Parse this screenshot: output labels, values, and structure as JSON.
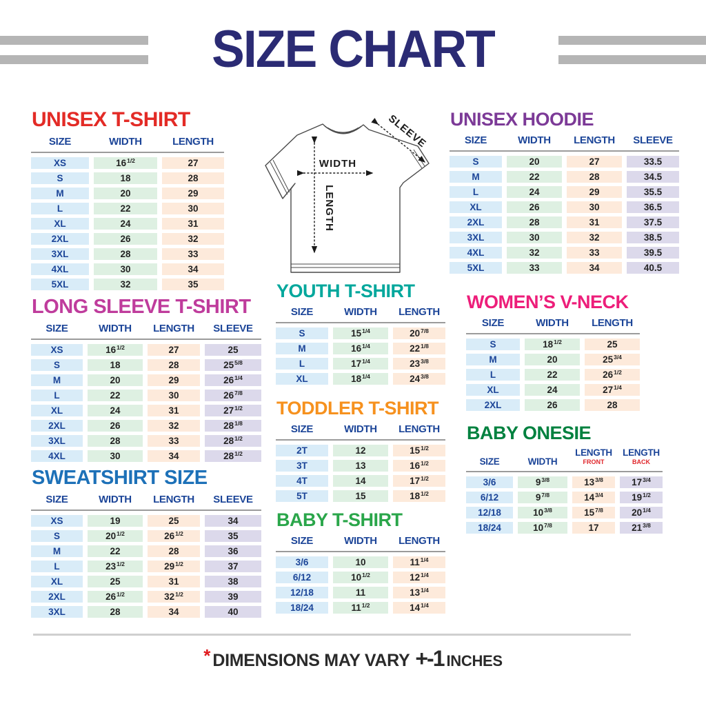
{
  "title": "SIZE CHART",
  "colors": {
    "main_title": "#2b2b74",
    "decorative_bar": "#b5b5b5",
    "header_navy": "#1c4598",
    "cell_blue": "#d9ecf8",
    "cell_green": "#def0e2",
    "cell_peach": "#fdeadb",
    "cell_lavender": "#dcd9eb",
    "footnote_red": "#e0191d"
  },
  "diagram": {
    "width_label": "WIDTH",
    "length_label": "LENGTH",
    "sleeve_label": "SLEEVE"
  },
  "footer": {
    "asterisk": "*",
    "text": "DIMENSIONS MAY VARY",
    "tolerance": "+-1",
    "unit": "INCHES"
  },
  "sections": [
    {
      "id": "unisex-tshirt",
      "title": "UNISEX T-SHIRT",
      "color": "#e32b26",
      "columns": [
        {
          "label": "SIZE"
        },
        {
          "label": "WIDTH"
        },
        {
          "label": "LENGTH"
        }
      ],
      "rows": [
        [
          "XS",
          "16^1/2",
          "27"
        ],
        [
          "S",
          "18",
          "28"
        ],
        [
          "M",
          "20",
          "29"
        ],
        [
          "L",
          "22",
          "30"
        ],
        [
          "XL",
          "24",
          "31"
        ],
        [
          "2XL",
          "26",
          "32"
        ],
        [
          "3XL",
          "28",
          "33"
        ],
        [
          "4XL",
          "30",
          "34"
        ],
        [
          "5XL",
          "32",
          "35"
        ]
      ]
    },
    {
      "id": "unisex-hoodie",
      "title": "UNISEX HOODIE",
      "color": "#7c3a97",
      "columns": [
        {
          "label": "SIZE"
        },
        {
          "label": "WIDTH"
        },
        {
          "label": "LENGTH"
        },
        {
          "label": "SLEEVE"
        }
      ],
      "rows": [
        [
          "S",
          "20",
          "27",
          "33.5"
        ],
        [
          "M",
          "22",
          "28",
          "34.5"
        ],
        [
          "L",
          "24",
          "29",
          "35.5"
        ],
        [
          "XL",
          "26",
          "30",
          "36.5"
        ],
        [
          "2XL",
          "28",
          "31",
          "37.5"
        ],
        [
          "3XL",
          "30",
          "32",
          "38.5"
        ],
        [
          "4XL",
          "32",
          "33",
          "39.5"
        ],
        [
          "5XL",
          "33",
          "34",
          "40.5"
        ]
      ]
    },
    {
      "id": "long-sleeve-tshirt",
      "title": "LONG SLEEVE T-SHIRT",
      "color": "#bf3c9c",
      "columns": [
        {
          "label": "SIZE"
        },
        {
          "label": "WIDTH"
        },
        {
          "label": "LENGTH"
        },
        {
          "label": "SLEEVE"
        }
      ],
      "rows": [
        [
          "XS",
          "16^1/2",
          "27",
          "25"
        ],
        [
          "S",
          "18",
          "28",
          "25^5/8"
        ],
        [
          "M",
          "20",
          "29",
          "26^1/4"
        ],
        [
          "L",
          "22",
          "30",
          "26^7/8"
        ],
        [
          "XL",
          "24",
          "31",
          "27^1/2"
        ],
        [
          "2XL",
          "26",
          "32",
          "28^1/8"
        ],
        [
          "3XL",
          "28",
          "33",
          "28^1/2"
        ],
        [
          "4XL",
          "30",
          "34",
          "28^1/2"
        ]
      ]
    },
    {
      "id": "youth-tshirt",
      "title": "YOUTH T-SHIRT",
      "color": "#00a79c",
      "columns": [
        {
          "label": "SIZE"
        },
        {
          "label": "WIDTH"
        },
        {
          "label": "LENGTH"
        }
      ],
      "rows": [
        [
          "S",
          "15^1/4",
          "20^7/8"
        ],
        [
          "M",
          "16^1/4",
          "22^1/8"
        ],
        [
          "L",
          "17^1/4",
          "23^3/8"
        ],
        [
          "XL",
          "18^1/4",
          "24^3/8"
        ]
      ]
    },
    {
      "id": "womens-vneck",
      "title": "WOMEN’S V-NECK",
      "color": "#ed1e7a",
      "columns": [
        {
          "label": "SIZE"
        },
        {
          "label": "WIDTH"
        },
        {
          "label": "LENGTH"
        }
      ],
      "rows": [
        [
          "S",
          "18^1/2",
          "25"
        ],
        [
          "M",
          "20",
          "25^3/4"
        ],
        [
          "L",
          "22",
          "26^1/2"
        ],
        [
          "XL",
          "24",
          "27^1/4"
        ],
        [
          "2XL",
          "26",
          "28"
        ]
      ]
    },
    {
      "id": "toddler-tshirt",
      "title": "TODDLER T-SHIRT",
      "color": "#f6911e",
      "columns": [
        {
          "label": "SIZE"
        },
        {
          "label": "WIDTH"
        },
        {
          "label": "LENGTH"
        }
      ],
      "rows": [
        [
          "2T",
          "12",
          "15^1/2"
        ],
        [
          "3T",
          "13",
          "16^1/2"
        ],
        [
          "4T",
          "14",
          "17^1/2"
        ],
        [
          "5T",
          "15",
          "18^1/2"
        ]
      ]
    },
    {
      "id": "sweatshirt-size",
      "title": "SWEATSHIRT SIZE",
      "color": "#1d71b8",
      "columns": [
        {
          "label": "SIZE"
        },
        {
          "label": "WIDTH"
        },
        {
          "label": "LENGTH"
        },
        {
          "label": "SLEEVE"
        }
      ],
      "rows": [
        [
          "XS",
          "19",
          "25",
          "34"
        ],
        [
          "S",
          "20^1/2",
          "26^1/2",
          "35"
        ],
        [
          "M",
          "22",
          "28",
          "36"
        ],
        [
          "L",
          "23^1/2",
          "29^1/2",
          "37"
        ],
        [
          "XL",
          "25",
          "31",
          "38"
        ],
        [
          "2XL",
          "26^1/2",
          "32^1/2",
          "39"
        ],
        [
          "3XL",
          "28",
          "34",
          "40"
        ]
      ]
    },
    {
      "id": "baby-tshirt",
      "title": "BABY T-SHIRT",
      "color": "#2aa64a",
      "columns": [
        {
          "label": "SIZE"
        },
        {
          "label": "WIDTH"
        },
        {
          "label": "LENGTH"
        }
      ],
      "rows": [
        [
          "3/6",
          "10",
          "11^1/4"
        ],
        [
          "6/12",
          "10^1/2",
          "12^1/4"
        ],
        [
          "12/18",
          "11",
          "13^1/4"
        ],
        [
          "18/24",
          "11^1/2",
          "14^1/4"
        ]
      ]
    },
    {
      "id": "baby-onesie",
      "title": "BABY ONESIE",
      "color": "#00813f",
      "columns": [
        {
          "label": "SIZE"
        },
        {
          "label": "WIDTH"
        },
        {
          "label": "LENGTH",
          "sub": "FRONT"
        },
        {
          "label": "LENGTH",
          "sub": "BACK"
        }
      ],
      "rows": [
        [
          "3/6",
          "9^3/8",
          "13^3/8",
          "17^3/4"
        ],
        [
          "6/12",
          "9^7/8",
          "14^3/4",
          "19^1/2"
        ],
        [
          "12/18",
          "10^3/8",
          "15^7/8",
          "20^1/4"
        ],
        [
          "18/24",
          "10^7/8",
          "17",
          "21^3/8"
        ]
      ]
    }
  ]
}
